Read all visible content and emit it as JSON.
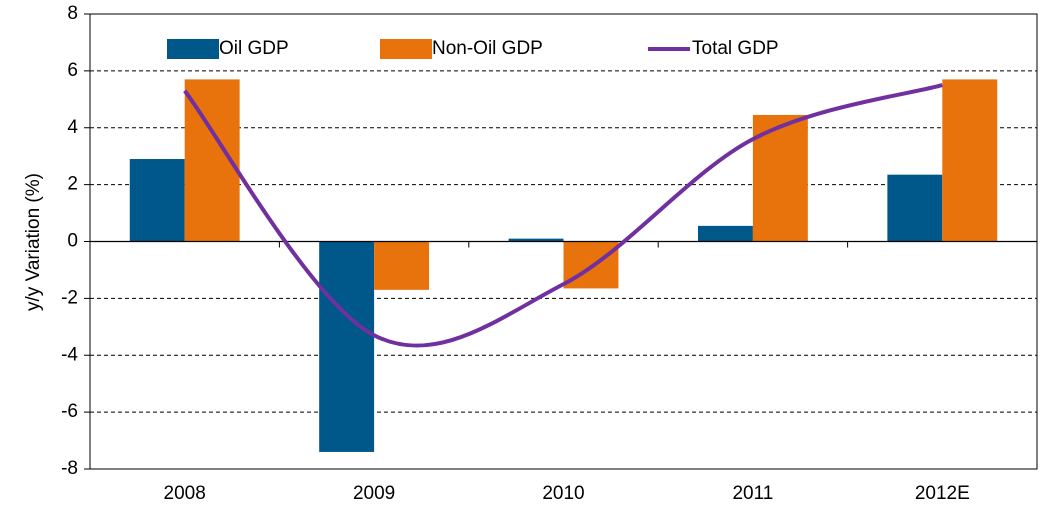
{
  "chart_data": {
    "type": "bar_line",
    "y_label": "y/y Variation (%)",
    "categories": [
      "2008",
      "2009",
      "2010",
      "2011",
      "2012E"
    ],
    "series": [
      {
        "name": "Oil GDP",
        "type": "bar",
        "color": "#00578a",
        "values": [
          2.9,
          -7.4,
          0.1,
          0.55,
          2.35
        ]
      },
      {
        "name": "Non-Oil GDP",
        "type": "bar",
        "color": "#e8720c",
        "values": [
          5.7,
          -1.7,
          -1.65,
          4.45,
          5.7
        ]
      },
      {
        "name": "Total GDP",
        "type": "line",
        "color": "#7030a0",
        "values": [
          5.3,
          -3.3,
          -1.5,
          3.6,
          5.5
        ]
      }
    ],
    "ylim": [
      -8,
      8
    ],
    "yticks": [
      -8,
      -6,
      -4,
      -2,
      0,
      2,
      4,
      6,
      8
    ],
    "grid": true,
    "legend": "top"
  }
}
